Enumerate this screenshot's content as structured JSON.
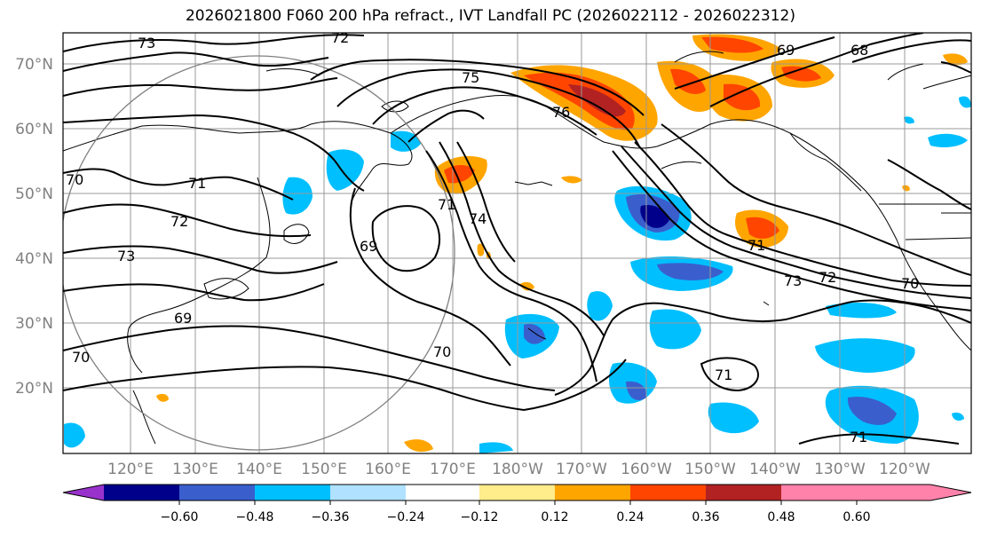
{
  "title": "2026021800 F060 200 hPa refract., IVT Landfall PC (2026022112 - 2026022312)",
  "lat_labels": [
    "70°N",
    "60°N",
    "50°N",
    "40°N",
    "30°N",
    "20°N"
  ],
  "lon_labels": [
    "120°E",
    "130°E",
    "140°E",
    "150°E",
    "160°E",
    "170°E",
    "180°W",
    "170°W",
    "160°W",
    "150°W",
    "140°W",
    "130°W",
    "120°W"
  ],
  "colorbar": {
    "colors": [
      "#9932cc",
      "#00008b",
      "#3a5fcd",
      "#00bfff",
      "#b0e2ff",
      "#ffffff",
      "#ffec8b",
      "#ffa500",
      "#ff4500",
      "#b22222",
      "#ff82ab"
    ],
    "labels": [
      "−0.60",
      "−0.48",
      "−0.36",
      "−0.24",
      "−0.12",
      "0.12",
      "0.24",
      "0.36",
      "0.48",
      "0.60"
    ]
  },
  "contour_labels": [
    "73",
    "72",
    "69",
    "68",
    "75",
    "76",
    "70",
    "71",
    "72",
    "73",
    "69",
    "70",
    "71",
    "74",
    "69",
    "73",
    "71",
    "72",
    "70",
    "70",
    "71",
    "71"
  ]
}
